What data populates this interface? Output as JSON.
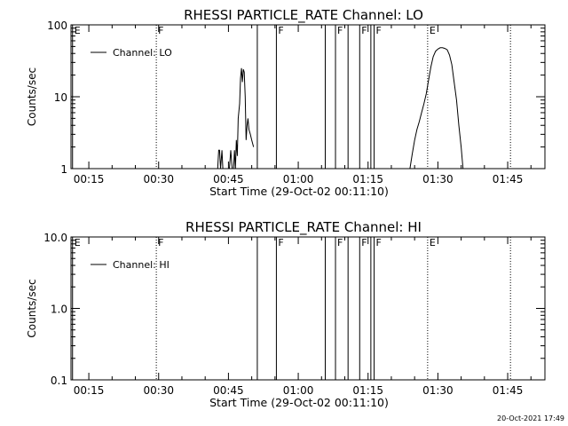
{
  "chart_data": [
    {
      "type": "line",
      "title": "RHESSI PARTICLE_RATE Channel: LO",
      "xlabel": "Start Time (29-Oct-02 00:11:10)",
      "ylabel": "Counts/sec",
      "yscale": "log",
      "xlim_minutes": [
        11.17,
        113.0
      ],
      "ylim": [
        1,
        100
      ],
      "x_ticks": [
        "00:15",
        "00:30",
        "00:45",
        "01:00",
        "01:15",
        "01:30",
        "01:45"
      ],
      "y_ticks": [
        "1",
        "10",
        "100"
      ],
      "legend": {
        "placement": "top-left",
        "entries": [
          "Channel: LO"
        ]
      },
      "markers": [
        {
          "t": 11.5,
          "label": "E",
          "style": "solid"
        },
        {
          "t": 29.5,
          "label": "F",
          "style": "dotted"
        },
        {
          "t": 51.2,
          "label": "",
          "style": "solid"
        },
        {
          "t": 55.3,
          "label": "F",
          "style": "solid"
        },
        {
          "t": 65.8,
          "label": "",
          "style": "solid"
        },
        {
          "t": 68.0,
          "label": "F",
          "style": "solid"
        },
        {
          "t": 70.7,
          "label": "",
          "style": "solid"
        },
        {
          "t": 73.2,
          "label": "F",
          "style": "solid"
        },
        {
          "t": 75.6,
          "label": "",
          "style": "solid"
        },
        {
          "t": 76.3,
          "label": "F",
          "style": "solid"
        },
        {
          "t": 87.8,
          "label": "E",
          "style": "dotted"
        },
        {
          "t": 105.6,
          "label": "",
          "style": "dotted"
        }
      ],
      "series": [
        {
          "segments": [
            [
              [
                42.7,
                1
              ],
              [
                42.9,
                1.8
              ],
              [
                43.1,
                1.8
              ],
              [
                43.3,
                1
              ],
              [
                43.6,
                1.8
              ],
              [
                43.8,
                1
              ]
            ],
            [
              [
                45.2,
                1
              ],
              [
                45.5,
                1.8
              ],
              [
                45.8,
                1
              ]
            ],
            [
              [
                46.1,
                1
              ],
              [
                46.3,
                1.8
              ],
              [
                46.5,
                1
              ],
              [
                46.7,
                2.5
              ],
              [
                46.9,
                1.5
              ],
              [
                47.1,
                5
              ],
              [
                47.4,
                8
              ],
              [
                47.6,
                18
              ],
              [
                47.8,
                25
              ],
              [
                48.0,
                16
              ],
              [
                48.2,
                24
              ],
              [
                48.4,
                22
              ],
              [
                48.6,
                10
              ],
              [
                48.8,
                2.5
              ],
              [
                49.0,
                4
              ],
              [
                49.2,
                5
              ],
              [
                49.4,
                3.5
              ],
              [
                49.7,
                3
              ],
              [
                50.0,
                2.5
              ],
              [
                50.4,
                2
              ]
            ],
            [
              [
                84.0,
                1
              ],
              [
                84.5,
                1.6
              ],
              [
                85.0,
                2.5
              ],
              [
                85.5,
                3.5
              ],
              [
                86.0,
                4.5
              ],
              [
                86.5,
                6
              ],
              [
                87.0,
                8
              ],
              [
                87.5,
                11
              ],
              [
                88.0,
                17
              ],
              [
                88.5,
                26
              ],
              [
                89.0,
                36
              ],
              [
                89.5,
                43
              ],
              [
                90.0,
                46
              ],
              [
                90.5,
                48
              ],
              [
                91.0,
                48
              ],
              [
                91.5,
                47
              ],
              [
                92.0,
                45
              ],
              [
                92.5,
                38
              ],
              [
                93.0,
                28
              ],
              [
                93.5,
                16
              ],
              [
                94.0,
                9
              ],
              [
                94.5,
                4
              ],
              [
                95.0,
                2
              ],
              [
                95.4,
                1
              ]
            ]
          ]
        }
      ]
    },
    {
      "type": "line",
      "title": "RHESSI PARTICLE_RATE Channel: HI",
      "xlabel": "Start Time (29-Oct-02 00:11:10)",
      "ylabel": "Counts/sec",
      "yscale": "log",
      "xlim_minutes": [
        11.17,
        113.0
      ],
      "ylim": [
        0.1,
        10.0
      ],
      "x_ticks": [
        "00:15",
        "00:30",
        "00:45",
        "01:00",
        "01:15",
        "01:30",
        "01:45"
      ],
      "y_ticks": [
        "0.1",
        "1.0",
        "10.0"
      ],
      "legend": {
        "placement": "top-left",
        "entries": [
          "Channel: HI"
        ]
      },
      "markers": [
        {
          "t": 11.5,
          "label": "E",
          "style": "solid"
        },
        {
          "t": 29.5,
          "label": "F",
          "style": "dotted"
        },
        {
          "t": 51.2,
          "label": "",
          "style": "solid"
        },
        {
          "t": 55.3,
          "label": "F",
          "style": "solid"
        },
        {
          "t": 65.8,
          "label": "",
          "style": "solid"
        },
        {
          "t": 68.0,
          "label": "F",
          "style": "solid"
        },
        {
          "t": 70.7,
          "label": "",
          "style": "solid"
        },
        {
          "t": 73.2,
          "label": "F",
          "style": "solid"
        },
        {
          "t": 75.6,
          "label": "",
          "style": "solid"
        },
        {
          "t": 76.3,
          "label": "F",
          "style": "solid"
        },
        {
          "t": 87.8,
          "label": "E",
          "style": "dotted"
        },
        {
          "t": 105.6,
          "label": "",
          "style": "dotted"
        }
      ],
      "series": [
        {
          "segments": []
        }
      ]
    }
  ],
  "footer": {
    "timestamp": "20-Oct-2021 17:49"
  }
}
